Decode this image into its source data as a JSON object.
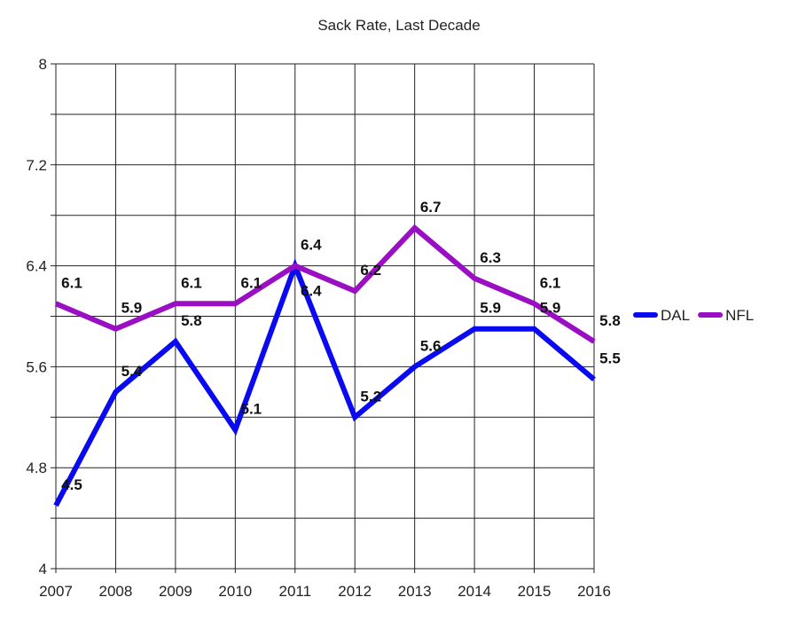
{
  "chart_data": {
    "type": "line",
    "title": "Sack Rate, Last Decade",
    "xlabel": "",
    "ylabel": "",
    "categories": [
      "2007",
      "2008",
      "2009",
      "2010",
      "2011",
      "2012",
      "2013",
      "2014",
      "2015",
      "2016"
    ],
    "series": [
      {
        "name": "DAL",
        "color": "#0a0af0",
        "values": [
          4.5,
          5.4,
          5.8,
          5.1,
          6.4,
          5.2,
          5.6,
          5.9,
          5.9,
          5.5
        ]
      },
      {
        "name": "NFL",
        "color": "#9b0fc4",
        "values": [
          6.1,
          5.9,
          6.1,
          6.1,
          6.4,
          6.2,
          6.7,
          6.3,
          6.1,
          5.8
        ]
      }
    ],
    "ylim": [
      4,
      8
    ],
    "yticks": [
      4,
      4.8,
      5.6,
      6.4,
      7.2,
      8
    ],
    "minor_grid_step": 0.4,
    "grid": true,
    "legend": "right"
  }
}
